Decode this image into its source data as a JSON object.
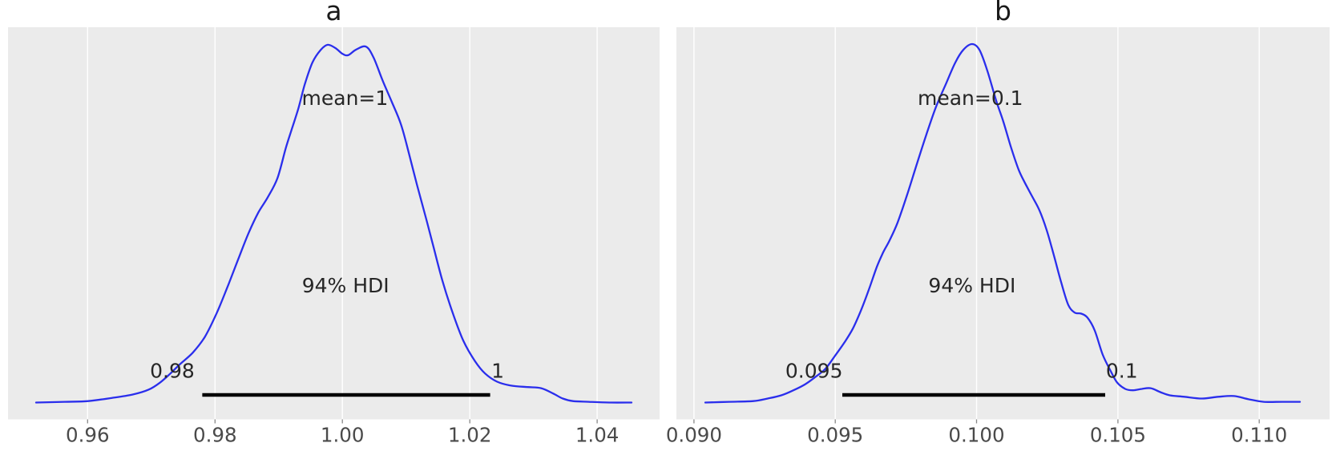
{
  "style": {
    "figure_background": "#ffffff",
    "axes_background": "#ebebeb",
    "grid_color": "#ffffff",
    "curve_color": "#2a2eec",
    "hdi_line_color": "#000000",
    "tick_color": "#878787",
    "tick_label_color": "#4a4a4a",
    "annotation_color": "#262626",
    "title_color": "#1a1a1a"
  },
  "chart_data": [
    {
      "type": "kde",
      "title": "a",
      "mean_label": "mean=1",
      "mean_value": 1.0,
      "mean_label_value": 1.0004,
      "hdi_label": "94% HDI",
      "hdi_label_value": 1.0005,
      "hdi": {
        "lower": 0.978,
        "upper": 1.0232,
        "lower_label": "0.98",
        "upper_label": "1",
        "lower_label_value": 0.9733,
        "upper_label_value": 1.0244
      },
      "x_range": [
        0.9475,
        1.0498
      ],
      "x_ticks": [
        0.96,
        0.98,
        1.0,
        1.02,
        1.04
      ],
      "x_tick_labels": [
        "0.96",
        "0.98",
        "1.00",
        "1.02",
        "1.04"
      ],
      "grid": "vertical-only",
      "legend": null,
      "curve": [
        [
          0.9519,
          0.0
        ],
        [
          0.9564,
          0.002
        ],
        [
          0.9601,
          0.004
        ],
        [
          0.9639,
          0.013
        ],
        [
          0.967,
          0.022
        ],
        [
          0.9696,
          0.036
        ],
        [
          0.9714,
          0.056
        ],
        [
          0.973,
          0.081
        ],
        [
          0.9745,
          0.107
        ],
        [
          0.9765,
          0.139
        ],
        [
          0.9784,
          0.183
        ],
        [
          0.9803,
          0.251
        ],
        [
          0.9821,
          0.329
        ],
        [
          0.9838,
          0.407
        ],
        [
          0.9853,
          0.474
        ],
        [
          0.9868,
          0.53
        ],
        [
          0.9883,
          0.573
        ],
        [
          0.9898,
          0.626
        ],
        [
          0.9911,
          0.709
        ],
        [
          0.9921,
          0.765
        ],
        [
          0.9931,
          0.821
        ],
        [
          0.9941,
          0.888
        ],
        [
          0.9953,
          0.949
        ],
        [
          0.9966,
          0.984
        ],
        [
          0.9977,
          0.998
        ],
        [
          0.9989,
          0.989
        ],
        [
          1.0,
          0.973
        ],
        [
          1.0009,
          0.969
        ],
        [
          1.0021,
          0.984
        ],
        [
          1.0037,
          0.993
        ],
        [
          1.0049,
          0.962
        ],
        [
          1.0063,
          0.899
        ],
        [
          1.0078,
          0.837
        ],
        [
          1.0092,
          0.776
        ],
        [
          1.0104,
          0.698
        ],
        [
          1.0117,
          0.608
        ],
        [
          1.013,
          0.523
        ],
        [
          1.0142,
          0.441
        ],
        [
          1.0157,
          0.34
        ],
        [
          1.0174,
          0.246
        ],
        [
          1.019,
          0.172
        ],
        [
          1.0208,
          0.116
        ],
        [
          1.0224,
          0.081
        ],
        [
          1.0243,
          0.058
        ],
        [
          1.0265,
          0.047
        ],
        [
          1.0291,
          0.043
        ],
        [
          1.0312,
          0.04
        ],
        [
          1.0331,
          0.025
        ],
        [
          1.0346,
          0.011
        ],
        [
          1.0362,
          0.004
        ],
        [
          1.0387,
          0.002
        ],
        [
          1.0419,
          0.0
        ],
        [
          1.0454,
          0.0
        ]
      ]
    },
    {
      "type": "kde",
      "title": "b",
      "mean_label": "mean=0.1",
      "mean_value": 0.1,
      "mean_label_value": 0.09978,
      "hdi_label": "94% HDI",
      "hdi_label_value": 0.09984,
      "hdi": {
        "lower": 0.09525,
        "upper": 0.10455,
        "lower_label": "0.095",
        "upper_label": "0.1",
        "lower_label_value": 0.09425,
        "upper_label_value": 0.10514
      },
      "x_range": [
        0.08938,
        0.11249
      ],
      "x_ticks": [
        0.09,
        0.095,
        0.1,
        0.105,
        0.11
      ],
      "x_tick_labels": [
        "0.090",
        "0.095",
        "0.100",
        "0.105",
        "0.110"
      ],
      "grid": "vertical-only",
      "legend": null,
      "curve": [
        [
          0.0904,
          0.0
        ],
        [
          0.09125,
          0.002
        ],
        [
          0.0921,
          0.004
        ],
        [
          0.09261,
          0.011
        ],
        [
          0.09309,
          0.02
        ],
        [
          0.09352,
          0.034
        ],
        [
          0.09394,
          0.051
        ],
        [
          0.09431,
          0.072
        ],
        [
          0.09465,
          0.094
        ],
        [
          0.09499,
          0.13
        ],
        [
          0.09533,
          0.168
        ],
        [
          0.09562,
          0.206
        ],
        [
          0.0959,
          0.255
        ],
        [
          0.09618,
          0.313
        ],
        [
          0.09647,
          0.378
        ],
        [
          0.09669,
          0.418
        ],
        [
          0.09692,
          0.452
        ],
        [
          0.0972,
          0.501
        ],
        [
          0.09754,
          0.579
        ],
        [
          0.09788,
          0.664
        ],
        [
          0.09822,
          0.747
        ],
        [
          0.09857,
          0.826
        ],
        [
          0.09891,
          0.888
        ],
        [
          0.09925,
          0.949
        ],
        [
          0.09953,
          0.984
        ],
        [
          0.09984,
          1.0
        ],
        [
          0.1001,
          0.984
        ],
        [
          0.10038,
          0.926
        ],
        [
          0.10069,
          0.843
        ],
        [
          0.10095,
          0.783
        ],
        [
          0.10123,
          0.709
        ],
        [
          0.10149,
          0.649
        ],
        [
          0.10171,
          0.613
        ],
        [
          0.10194,
          0.579
        ],
        [
          0.10222,
          0.537
        ],
        [
          0.10248,
          0.481
        ],
        [
          0.10273,
          0.412
        ],
        [
          0.10299,
          0.336
        ],
        [
          0.10324,
          0.273
        ],
        [
          0.10347,
          0.251
        ],
        [
          0.1037,
          0.248
        ],
        [
          0.10392,
          0.237
        ],
        [
          0.10418,
          0.201
        ],
        [
          0.10446,
          0.134
        ],
        [
          0.10475,
          0.087
        ],
        [
          0.10497,
          0.056
        ],
        [
          0.10526,
          0.038
        ],
        [
          0.10554,
          0.034
        ],
        [
          0.10585,
          0.038
        ],
        [
          0.10616,
          0.04
        ],
        [
          0.1065,
          0.029
        ],
        [
          0.10684,
          0.02
        ],
        [
          0.10735,
          0.016
        ],
        [
          0.10798,
          0.011
        ],
        [
          0.10855,
          0.016
        ],
        [
          0.10911,
          0.018
        ],
        [
          0.10962,
          0.009
        ],
        [
          0.11016,
          0.002
        ],
        [
          0.11081,
          0.002
        ],
        [
          0.11144,
          0.002
        ]
      ]
    }
  ]
}
